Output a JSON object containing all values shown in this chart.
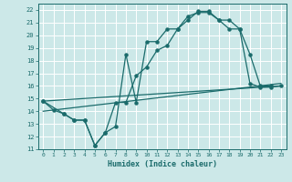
{
  "background_color": "#cce8e8",
  "grid_color": "#ffffff",
  "line_color": "#1a6b6b",
  "x_label": "Humidex (Indice chaleur)",
  "xlim": [
    -0.5,
    23.5
  ],
  "ylim": [
    11,
    22.5
  ],
  "xticks": [
    0,
    1,
    2,
    3,
    4,
    5,
    6,
    7,
    8,
    9,
    10,
    11,
    12,
    13,
    14,
    15,
    16,
    17,
    18,
    19,
    20,
    21,
    22,
    23
  ],
  "yticks": [
    11,
    12,
    13,
    14,
    15,
    16,
    17,
    18,
    19,
    20,
    21,
    22
  ],
  "curve1_x": [
    0,
    1,
    2,
    3,
    4,
    5,
    6,
    7,
    8,
    9,
    10,
    11,
    12,
    13,
    14,
    15,
    16,
    17,
    18,
    19,
    20,
    21,
    22,
    23
  ],
  "curve1_y": [
    14.8,
    14.1,
    13.8,
    13.3,
    13.3,
    11.3,
    12.3,
    12.8,
    18.5,
    14.7,
    19.5,
    19.5,
    20.5,
    20.5,
    21.2,
    21.9,
    21.9,
    21.2,
    21.2,
    20.5,
    16.2,
    15.9,
    15.9,
    16.0
  ],
  "curve2_x": [
    0,
    2,
    3,
    4,
    5,
    6,
    7,
    8,
    9,
    10,
    11,
    12,
    13,
    14,
    15,
    16,
    17,
    18,
    19,
    20,
    21,
    22
  ],
  "curve2_y": [
    14.8,
    13.8,
    13.3,
    13.3,
    11.3,
    12.3,
    14.7,
    14.7,
    16.8,
    17.5,
    18.8,
    19.2,
    20.5,
    21.5,
    21.8,
    21.8,
    21.2,
    20.5,
    20.5,
    18.5,
    16.0,
    16.0
  ],
  "line1_x": [
    0,
    23
  ],
  "line1_y": [
    14.0,
    16.2
  ],
  "line2_x": [
    0,
    23
  ],
  "line2_y": [
    14.8,
    16.0
  ]
}
